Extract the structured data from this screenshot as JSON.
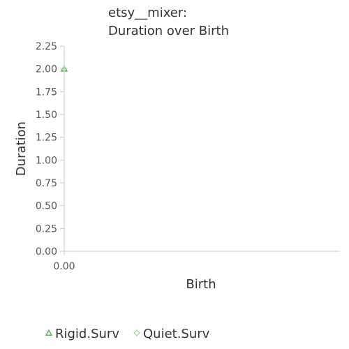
{
  "chart_data": {
    "type": "scatter",
    "title_lines": [
      "etsy__mixer:",
      "Duration over Birth"
    ],
    "xlabel": "Birth",
    "ylabel": "Duration",
    "xlim": [
      0,
      1
    ],
    "ylim": [
      0,
      2.25
    ],
    "x_ticks": [
      "0.00"
    ],
    "y_ticks": [
      "0.00",
      "0.25",
      "0.50",
      "0.75",
      "1.00",
      "1.25",
      "1.50",
      "1.75",
      "2.00",
      "2.25"
    ],
    "legend_position": "bottom",
    "series": [
      {
        "name": "Rigid.Surv",
        "marker": "triangle",
        "color": "#4caf50",
        "points": [
          {
            "x": 0.0,
            "y": 2.0
          }
        ]
      },
      {
        "name": "Quiet.Surv",
        "marker": "diamond",
        "color": "#a5d6a7",
        "points": [
          {
            "x": 0.0,
            "y": 2.0
          }
        ]
      }
    ],
    "grid": false
  }
}
